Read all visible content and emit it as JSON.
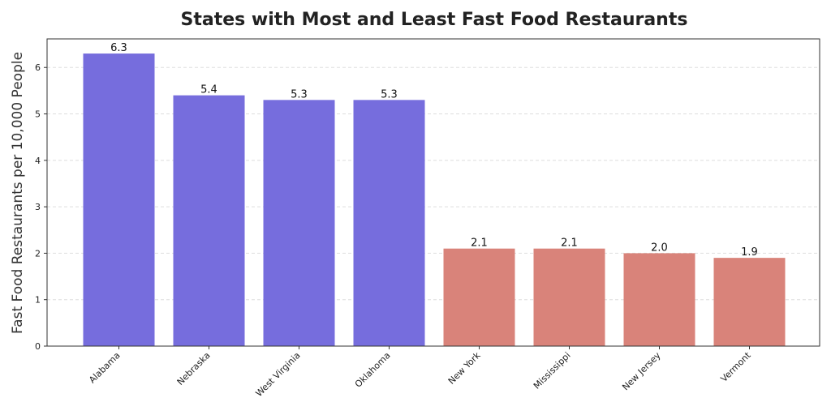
{
  "chart_data": {
    "type": "bar",
    "title": "States with Most and Least Fast Food Restaurants",
    "xlabel": "",
    "ylabel": "Fast Food Restaurants per 10,000 People",
    "categories": [
      "Alabama",
      "Nebraska",
      "West Virginia",
      "Oklahoma",
      "New York",
      "Mississippi",
      "New Jersey",
      "Vermont"
    ],
    "values": [
      6.3,
      5.4,
      5.3,
      5.3,
      2.1,
      2.1,
      2.0,
      1.9
    ],
    "value_labels": [
      "6.3",
      "5.4",
      "5.3",
      "5.3",
      "2.1",
      "2.1",
      "2.0",
      "1.9"
    ],
    "bar_colors": [
      "#766ddd",
      "#766ddd",
      "#766ddd",
      "#766ddd",
      "#d9837a",
      "#d9837a",
      "#d9837a",
      "#d9837a"
    ],
    "ylim": [
      0,
      6.615
    ],
    "yticks": [
      0,
      1,
      2,
      3,
      4,
      5,
      6
    ],
    "grid": "y-dashed",
    "legend": "none"
  }
}
